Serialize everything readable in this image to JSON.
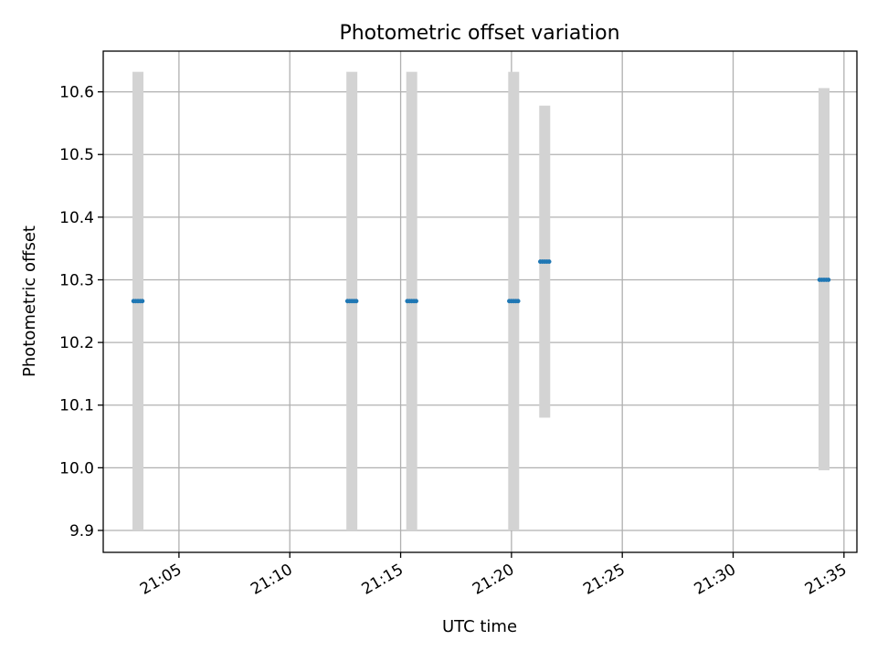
{
  "chart_data": {
    "type": "scatter",
    "title": "Photometric offset variation",
    "xlabel": "UTC time",
    "ylabel": "Photometric offset",
    "x_range": [
      "21:01:35",
      "21:35:35"
    ],
    "ylim": [
      9.865,
      10.665
    ],
    "x_ticks": [
      "21:05",
      "21:10",
      "21:15",
      "21:20",
      "21:25",
      "21:30",
      "21:35"
    ],
    "y_ticks": [
      "9.9",
      "10.0",
      "10.1",
      "10.2",
      "10.3",
      "10.4",
      "10.5",
      "10.6"
    ],
    "grid": true,
    "points": [
      {
        "time": "21:02:57",
        "value": 10.266
      },
      {
        "time": "21:03:03",
        "value": 10.266
      },
      {
        "time": "21:03:09",
        "value": 10.266
      },
      {
        "time": "21:03:15",
        "value": 10.266
      },
      {
        "time": "21:03:21",
        "value": 10.266
      },
      {
        "time": "21:12:36",
        "value": 10.266
      },
      {
        "time": "21:12:42",
        "value": 10.266
      },
      {
        "time": "21:12:48",
        "value": 10.266
      },
      {
        "time": "21:12:54",
        "value": 10.266
      },
      {
        "time": "21:13:00",
        "value": 10.266
      },
      {
        "time": "21:15:18",
        "value": 10.266
      },
      {
        "time": "21:15:24",
        "value": 10.266
      },
      {
        "time": "21:15:30",
        "value": 10.266
      },
      {
        "time": "21:15:36",
        "value": 10.266
      },
      {
        "time": "21:15:42",
        "value": 10.266
      },
      {
        "time": "21:19:54",
        "value": 10.266
      },
      {
        "time": "21:20:00",
        "value": 10.266
      },
      {
        "time": "21:20:06",
        "value": 10.266
      },
      {
        "time": "21:20:12",
        "value": 10.266
      },
      {
        "time": "21:20:18",
        "value": 10.266
      },
      {
        "time": "21:21:18",
        "value": 10.329
      },
      {
        "time": "21:21:24",
        "value": 10.329
      },
      {
        "time": "21:21:30",
        "value": 10.329
      },
      {
        "time": "21:21:36",
        "value": 10.329
      },
      {
        "time": "21:21:42",
        "value": 10.329
      },
      {
        "time": "21:33:54",
        "value": 10.3
      },
      {
        "time": "21:34:00",
        "value": 10.3
      },
      {
        "time": "21:34:06",
        "value": 10.3
      },
      {
        "time": "21:34:12",
        "value": 10.3
      },
      {
        "time": "21:34:18",
        "value": 10.3
      }
    ],
    "error_bars": [
      {
        "time": "21:03:09",
        "low": 9.9,
        "high": 10.632
      },
      {
        "time": "21:12:48",
        "low": 9.9,
        "high": 10.632
      },
      {
        "time": "21:15:30",
        "low": 9.9,
        "high": 10.632
      },
      {
        "time": "21:20:06",
        "low": 9.9,
        "high": 10.632
      },
      {
        "time": "21:21:30",
        "low": 10.08,
        "high": 10.578
      },
      {
        "time": "21:34:06",
        "low": 9.996,
        "high": 10.606
      }
    ],
    "colors": {
      "points": "#1f77b4",
      "error_bars": "#d3d3d3",
      "grid": "#b0b0b0"
    }
  }
}
